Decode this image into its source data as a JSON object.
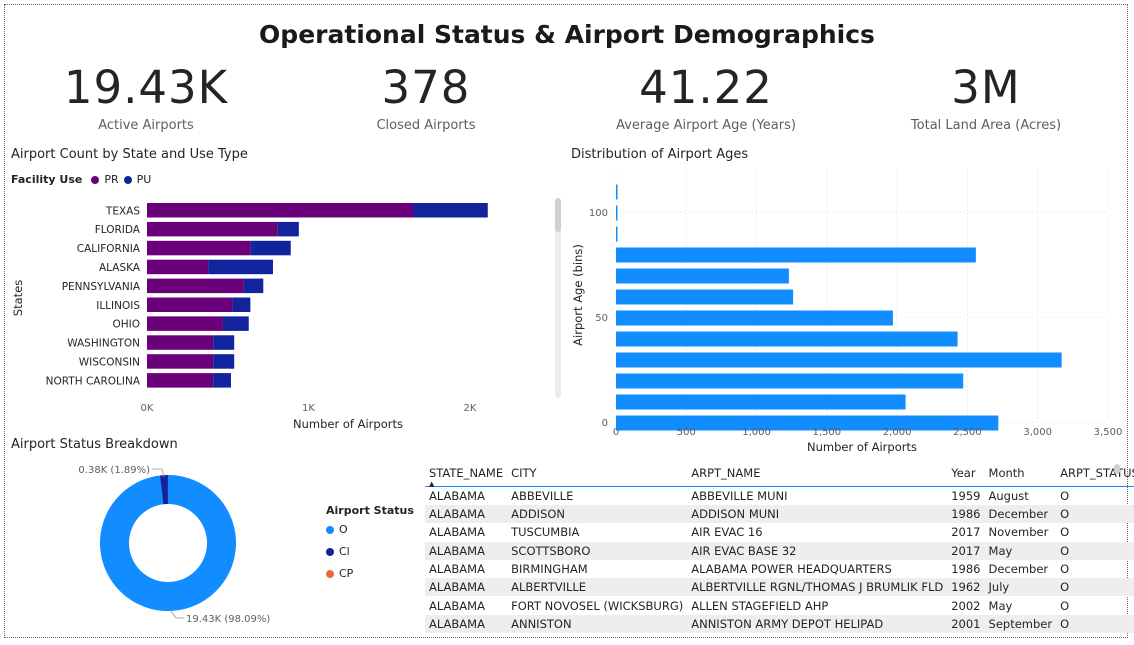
{
  "header": {
    "title": "Operational Status & Airport Demographics"
  },
  "kpis": [
    {
      "value": "19.43K",
      "label": "Active Airports"
    },
    {
      "value": "378",
      "label": "Closed Airports"
    },
    {
      "value": "41.22",
      "label": "Average Airport Age (Years)"
    },
    {
      "value": "3M",
      "label": "Total Land Area (Acres)"
    }
  ],
  "colors": {
    "pr": "#6B007B",
    "pu": "#12239E",
    "age": "#118DFF",
    "status_o": "#118DFF",
    "status_cl": "#12239E",
    "status_cp": "#E66C37"
  },
  "state_chart": {
    "title": "Airport Count by State and Use Type",
    "legend_title": "Facility Use",
    "legend": [
      "PR",
      "PU"
    ],
    "xlabel": "Number of Airports",
    "ylabel": "States",
    "x_ticks": [
      "0K",
      "1K",
      "2K"
    ]
  },
  "age_chart": {
    "title": "Distribution of Airport Ages",
    "xlabel": "Number of Airports",
    "ylabel": "Airport Age (bins)",
    "x_ticks": [
      "0",
      "500",
      "1,000",
      "1,500",
      "2,000",
      "2,500",
      "3,000",
      "3,500"
    ],
    "y_ticks": [
      "100",
      "50",
      "0"
    ]
  },
  "status_chart": {
    "title": "Airport Status Breakdown",
    "legend_title": "Airport Status",
    "legend": [
      "O",
      "Cl",
      "CP"
    ],
    "label_small": "0.38K (1.89%)",
    "label_large": "19.43K (98.09%)"
  },
  "chart_data": [
    {
      "type": "bar",
      "orientation": "horizontal",
      "stacked": true,
      "title": "Airport Count by State and Use Type",
      "categories": [
        "TEXAS",
        "FLORIDA",
        "CALIFORNIA",
        "ALASKA",
        "PENNSYLVANIA",
        "ILLINOIS",
        "OHIO",
        "WASHINGTON",
        "WISCONSIN",
        "NORTH CAROLINA"
      ],
      "series": [
        {
          "name": "PR",
          "values": [
            1650,
            810,
            640,
            380,
            600,
            530,
            470,
            410,
            410,
            410
          ]
        },
        {
          "name": "PU",
          "values": [
            460,
            130,
            250,
            400,
            120,
            110,
            160,
            130,
            130,
            110
          ]
        }
      ],
      "xlabel": "Number of Airports",
      "ylabel": "States",
      "xlim": [
        0,
        2500
      ],
      "legend": "top-left"
    },
    {
      "type": "bar",
      "orientation": "horizontal",
      "title": "Distribution of Airport Ages",
      "x": [
        0,
        10,
        20,
        30,
        40,
        50,
        60,
        70,
        80,
        90,
        100,
        110
      ],
      "values": [
        2720,
        2060,
        2470,
        3170,
        2430,
        1970,
        1260,
        1230,
        2560,
        10,
        5,
        5
      ],
      "xlabel": "Number of Airports",
      "ylabel": "Airport Age (bins)",
      "xlim": [
        0,
        3500
      ],
      "ylim": [
        0,
        120
      ],
      "grid": true
    },
    {
      "type": "pie",
      "donut": true,
      "title": "Airport Status Breakdown",
      "categories": [
        "O",
        "Cl",
        "CP"
      ],
      "values": [
        19430,
        378,
        2
      ],
      "labels": [
        "19.43K (98.09%)",
        "0.38K (1.89%)",
        ""
      ],
      "legend": "right"
    }
  ],
  "table": {
    "columns": [
      "STATE_NAME",
      "CITY",
      "ARPT_NAME",
      "Year",
      "Month",
      "ARPT_STATUS"
    ],
    "rows": [
      [
        "ALABAMA",
        "ABBEVILLE",
        "ABBEVILLE MUNI",
        "1959",
        "August",
        "O"
      ],
      [
        "ALABAMA",
        "ADDISON",
        "ADDISON MUNI",
        "1986",
        "December",
        "O"
      ],
      [
        "ALABAMA",
        "TUSCUMBIA",
        "AIR EVAC 16",
        "2017",
        "November",
        "O"
      ],
      [
        "ALABAMA",
        "SCOTTSBORO",
        "AIR EVAC BASE 32",
        "2017",
        "May",
        "O"
      ],
      [
        "ALABAMA",
        "BIRMINGHAM",
        "ALABAMA POWER HEADQUARTERS",
        "1986",
        "December",
        "O"
      ],
      [
        "ALABAMA",
        "ALBERTVILLE",
        "ALBERTVILLE RGNL/THOMAS J BRUMLIK FLD",
        "1962",
        "July",
        "O"
      ],
      [
        "ALABAMA",
        "FORT NOVOSEL (WICKSBURG)",
        "ALLEN STAGEFIELD AHP",
        "2002",
        "May",
        "O"
      ],
      [
        "ALABAMA",
        "ANNISTON",
        "ANNISTON ARMY DEPOT HELIPAD",
        "2001",
        "September",
        "O"
      ]
    ]
  }
}
